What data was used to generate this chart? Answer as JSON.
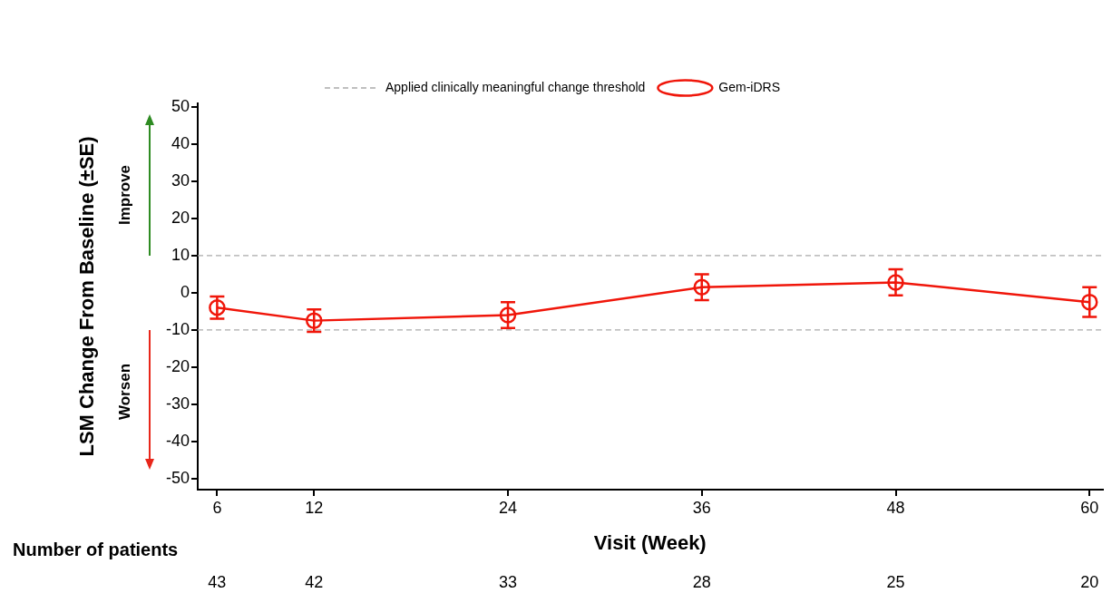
{
  "chart_data": {
    "type": "line",
    "xlabel": "Visit (Week)",
    "ylabel": "LSM Change From Baseline (±SE)",
    "x": [
      6,
      12,
      24,
      36,
      48,
      60
    ],
    "xlim": [
      4.8,
      60.8
    ],
    "xticks": [
      6,
      12,
      24,
      36,
      48,
      60
    ],
    "ylim": [
      -53,
      51
    ],
    "yticks": [
      -50,
      -40,
      -30,
      -20,
      -10,
      0,
      10,
      20,
      30,
      40,
      50
    ],
    "series": [
      {
        "name": "Gem-iDRS",
        "color": "#f0160a",
        "values": [
          -4,
          -7.5,
          -6,
          1.5,
          2.8,
          -2.5
        ],
        "errors": [
          3,
          3,
          3.5,
          3.5,
          3.5,
          4
        ]
      }
    ],
    "marker": "circle",
    "line_style": "solid",
    "grid": false,
    "legend": "top",
    "ref_lines": [
      {
        "axis": "y",
        "value": 10,
        "label": "Applied clinically meaningful change threshold",
        "color": "#aaaaaa",
        "line_style": "dashed"
      },
      {
        "axis": "y",
        "value": -10,
        "color": "#aaaaaa",
        "line_style": "dashed"
      }
    ],
    "annotations": [
      "Improve",
      "Worsen",
      "Number of patients",
      "43",
      "42",
      "33",
      "28",
      "25",
      "20"
    ]
  }
}
